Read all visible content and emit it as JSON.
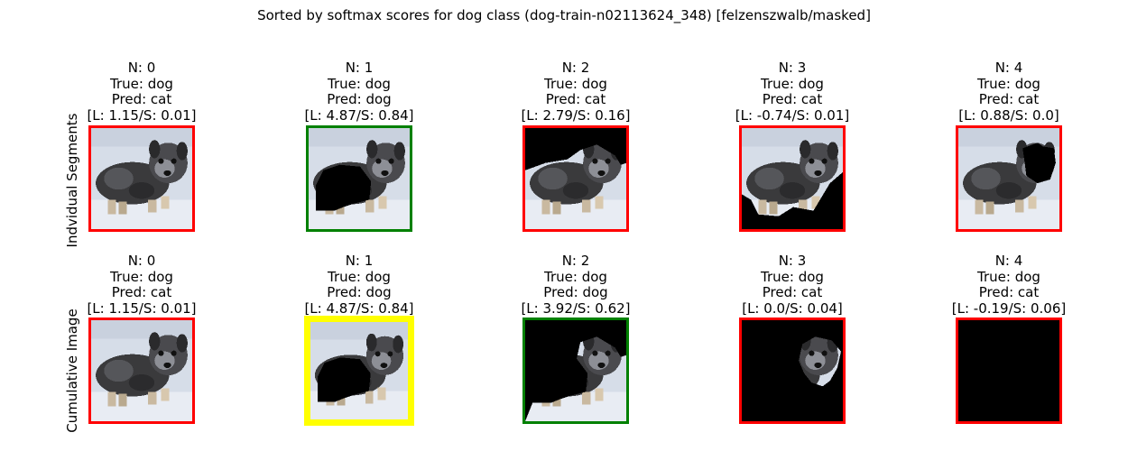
{
  "figure": {
    "title": "Sorted by softmax scores for dog class (dog-train-n02113624_348) [felzenszwalb/masked]"
  },
  "colors": {
    "red": "#ff0000",
    "green": "#008000",
    "yellow": "#ffff00"
  },
  "rows": [
    {
      "label": "Indvidual Segments",
      "cells": [
        {
          "n": "N: 0",
          "true": "True: dog",
          "pred": "Pred: cat",
          "ls": "[L: 1.15/S: 0.01]",
          "border": "red",
          "mask": "none"
        },
        {
          "n": "N: 1",
          "true": "True: dog",
          "pred": "Pred: dog",
          "ls": "[L: 4.87/S: 0.84]",
          "border": "green",
          "mask": "body-black"
        },
        {
          "n": "N: 2",
          "true": "True: dog",
          "pred": "Pred: cat",
          "ls": "[L: 2.79/S: 0.16]",
          "border": "red",
          "mask": "top-black"
        },
        {
          "n": "N: 3",
          "true": "True: dog",
          "pred": "Pred: cat",
          "ls": "[L: -0.74/S: 0.01]",
          "border": "red",
          "mask": "bottom-black"
        },
        {
          "n": "N: 4",
          "true": "True: dog",
          "pred": "Pred: cat",
          "ls": "[L: 0.88/S: 0.0]",
          "border": "red",
          "mask": "head-black"
        }
      ]
    },
    {
      "label": "Cumulative Image",
      "cells": [
        {
          "n": "N: 0",
          "true": "True: dog",
          "pred": "Pred: cat",
          "ls": "[L: 1.15/S: 0.01]",
          "border": "red",
          "mask": "none"
        },
        {
          "n": "N: 1",
          "true": "True: dog",
          "pred": "Pred: dog",
          "ls": "[L: 4.87/S: 0.84]",
          "border": "yellow",
          "mask": "body-black"
        },
        {
          "n": "N: 2",
          "true": "True: dog",
          "pred": "Pred: dog",
          "ls": "[L: 3.92/S: 0.62]",
          "border": "green",
          "mask": "cum2"
        },
        {
          "n": "N: 3",
          "true": "True: dog",
          "pred": "Pred: cat",
          "ls": "[L: 0.0/S: 0.04]",
          "border": "red",
          "mask": "cum3"
        },
        {
          "n": "N: 4",
          "true": "True: dog",
          "pred": "Pred: cat",
          "ls": "[L: -0.19/S: 0.06]",
          "border": "red",
          "mask": "all-black"
        }
      ]
    }
  ]
}
